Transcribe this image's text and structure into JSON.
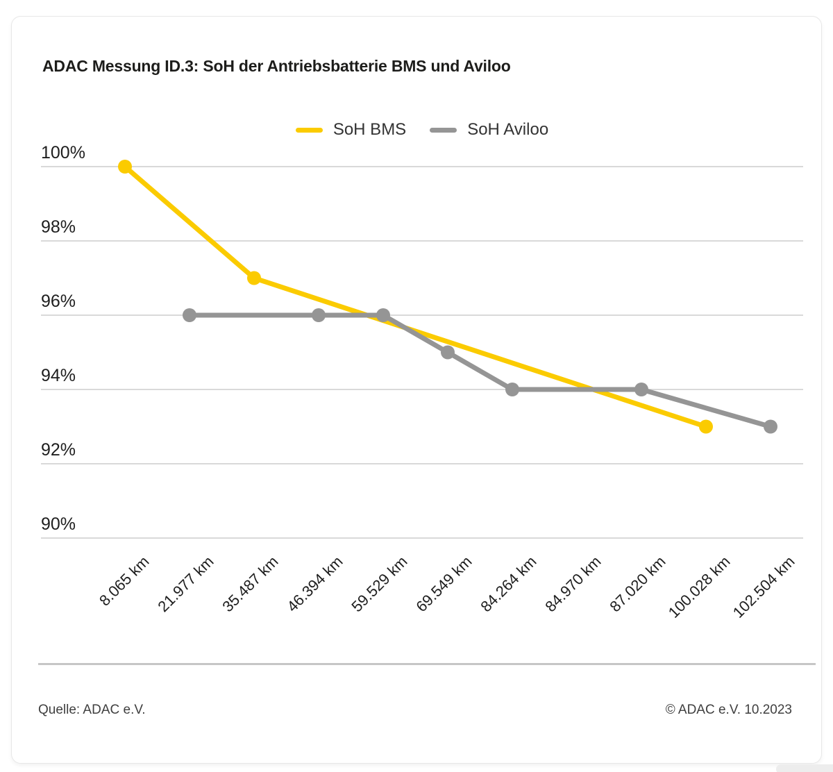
{
  "title": "ADAC Messung ID.3: SoH der Antriebsbatterie BMS und Aviloo",
  "footer": {
    "source": "Quelle: ADAC e.V.",
    "copyright": "© ADAC e.V. 10.2023"
  },
  "colors": {
    "bms_yellow": "#fbcb00",
    "aviloo_gray": "#959595",
    "gridline": "#d9d9d9",
    "text_dark": "#1e1e1e"
  },
  "chart_data": {
    "type": "line",
    "title": "ADAC Messung ID.3: SoH der Antriebsbatterie BMS und Aviloo",
    "xlabel": "",
    "ylabel": "",
    "unit": "%",
    "ylim": [
      90,
      100
    ],
    "yticks": [
      100,
      98,
      96,
      94,
      92,
      90
    ],
    "ytick_labels": [
      "100%",
      "98%",
      "96%",
      "94%",
      "92%",
      "90%"
    ],
    "grid": "horizontal-only",
    "legend_position": "top-center",
    "categories": [
      "8.065 km",
      "21.977 km",
      "35.487 km",
      "46.394 km",
      "59.529 km",
      "69.549 km",
      "84.264 km",
      "84.970 km",
      "87.020 km",
      "100.028 km",
      "102.504 km"
    ],
    "series": [
      {
        "name": "SoH BMS",
        "color": "#fbcb00",
        "values": [
          100,
          null,
          97,
          null,
          null,
          null,
          null,
          null,
          null,
          93,
          null
        ]
      },
      {
        "name": "SoH Aviloo",
        "color": "#959595",
        "values": [
          null,
          96,
          null,
          96,
          96,
          95,
          94,
          null,
          94,
          null,
          93
        ]
      }
    ]
  }
}
